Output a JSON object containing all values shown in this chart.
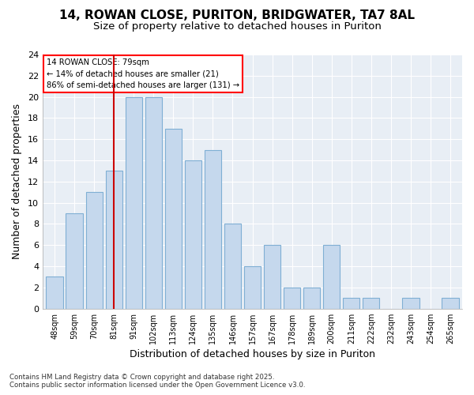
{
  "title1": "14, ROWAN CLOSE, PURITON, BRIDGWATER, TA7 8AL",
  "title2": "Size of property relative to detached houses in Puriton",
  "xlabel": "Distribution of detached houses by size in Puriton",
  "ylabel": "Number of detached properties",
  "footer1": "Contains HM Land Registry data © Crown copyright and database right 2025.",
  "footer2": "Contains public sector information licensed under the Open Government Licence v3.0.",
  "bin_labels": [
    "48sqm",
    "59sqm",
    "70sqm",
    "81sqm",
    "91sqm",
    "102sqm",
    "113sqm",
    "124sqm",
    "135sqm",
    "146sqm",
    "157sqm",
    "167sqm",
    "178sqm",
    "189sqm",
    "200sqm",
    "211sqm",
    "222sqm",
    "232sqm",
    "243sqm",
    "254sqm",
    "265sqm"
  ],
  "bin_values": [
    3,
    9,
    11,
    13,
    20,
    20,
    17,
    14,
    15,
    8,
    4,
    6,
    2,
    2,
    6,
    1,
    1,
    0,
    1,
    0,
    1
  ],
  "bar_color": "#c5d8ed",
  "bar_edge_color": "#7fafd4",
  "vline_color": "#cc0000",
  "vline_index": 3,
  "annotation_text_line1": "14 ROWAN CLOSE: 79sqm",
  "annotation_text_line2": "← 14% of detached houses are smaller (21)",
  "annotation_text_line3": "86% of semi-detached houses are larger (131) →",
  "ylim": [
    0,
    24
  ],
  "yticks": [
    0,
    2,
    4,
    6,
    8,
    10,
    12,
    14,
    16,
    18,
    20,
    22,
    24
  ],
  "bg_color": "#ffffff",
  "plot_bg_color": "#e8eef5",
  "grid_color": "#ffffff",
  "title_fontsize": 11,
  "subtitle_fontsize": 9.5
}
